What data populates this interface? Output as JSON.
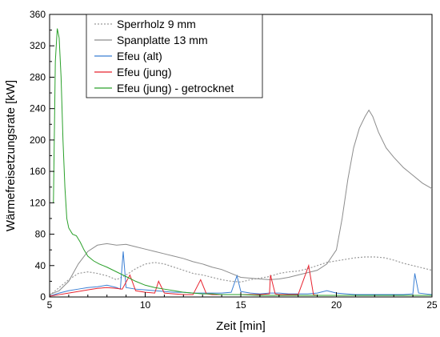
{
  "chart_data": {
    "type": "line",
    "title": "",
    "xlabel": "Zeit [min]",
    "ylabel": "Wärmefreisetzungsrate [kW]",
    "xlim": [
      5,
      25
    ],
    "ylim": [
      0,
      360
    ],
    "xticks": [
      5,
      10,
      15,
      20,
      25
    ],
    "yticks": [
      0,
      40,
      80,
      120,
      160,
      200,
      240,
      280,
      320,
      360
    ],
    "xtick_labels": [
      "5",
      "10",
      "15",
      "20",
      "25"
    ],
    "ytick_labels": [
      "0",
      "40",
      "80",
      "120",
      "160",
      "200",
      "240",
      "280",
      "320",
      "360"
    ],
    "grid": false,
    "legend_position": "top-left",
    "series": [
      {
        "name": "Sperrholz 9 mm",
        "color": "#9a9a9a",
        "style": "dotted",
        "points": [
          [
            5.0,
            2
          ],
          [
            5.5,
            12
          ],
          [
            6.0,
            22
          ],
          [
            6.5,
            30
          ],
          [
            7.0,
            32
          ],
          [
            7.5,
            30
          ],
          [
            8.0,
            27
          ],
          [
            8.5,
            22
          ],
          [
            9.0,
            28
          ],
          [
            9.5,
            36
          ],
          [
            10.0,
            42
          ],
          [
            10.5,
            44
          ],
          [
            11.0,
            42
          ],
          [
            11.5,
            38
          ],
          [
            12.0,
            34
          ],
          [
            12.5,
            30
          ],
          [
            13.0,
            28
          ],
          [
            13.5,
            25
          ],
          [
            14.0,
            22
          ],
          [
            14.5,
            20
          ],
          [
            15.0,
            19
          ],
          [
            15.5,
            22
          ],
          [
            16.0,
            24
          ],
          [
            16.5,
            26
          ],
          [
            17.0,
            30
          ],
          [
            17.5,
            32
          ],
          [
            18.0,
            33
          ],
          [
            18.5,
            36
          ],
          [
            19.0,
            40
          ],
          [
            19.5,
            44
          ],
          [
            20.0,
            46
          ],
          [
            20.5,
            48
          ],
          [
            21.0,
            50
          ],
          [
            21.5,
            51
          ],
          [
            22.0,
            51
          ],
          [
            22.5,
            50
          ],
          [
            23.0,
            47
          ],
          [
            23.5,
            43
          ],
          [
            24.0,
            40
          ],
          [
            24.5,
            37
          ],
          [
            25.0,
            34
          ]
        ]
      },
      {
        "name": "Spanplatte 13 mm",
        "color": "#8c8c8c",
        "style": "solid",
        "points": [
          [
            5.0,
            3
          ],
          [
            5.5,
            8
          ],
          [
            6.0,
            20
          ],
          [
            6.5,
            42
          ],
          [
            7.0,
            58
          ],
          [
            7.5,
            66
          ],
          [
            8.0,
            68
          ],
          [
            8.5,
            66
          ],
          [
            9.0,
            67
          ],
          [
            9.5,
            64
          ],
          [
            10.0,
            61
          ],
          [
            10.5,
            58
          ],
          [
            11.0,
            55
          ],
          [
            11.5,
            52
          ],
          [
            12.0,
            49
          ],
          [
            12.5,
            45
          ],
          [
            13.0,
            42
          ],
          [
            13.5,
            38
          ],
          [
            14.0,
            35
          ],
          [
            14.5,
            30
          ],
          [
            15.0,
            25
          ],
          [
            15.5,
            24
          ],
          [
            16.0,
            23
          ],
          [
            16.5,
            22
          ],
          [
            17.0,
            23
          ],
          [
            17.5,
            25
          ],
          [
            18.0,
            28
          ],
          [
            18.5,
            31
          ],
          [
            19.0,
            34
          ],
          [
            19.5,
            42
          ],
          [
            20.0,
            60
          ],
          [
            20.3,
            100
          ],
          [
            20.6,
            150
          ],
          [
            20.9,
            190
          ],
          [
            21.2,
            215
          ],
          [
            21.5,
            230
          ],
          [
            21.7,
            238
          ],
          [
            21.9,
            230
          ],
          [
            22.2,
            210
          ],
          [
            22.6,
            190
          ],
          [
            23.0,
            178
          ],
          [
            23.5,
            165
          ],
          [
            24.0,
            155
          ],
          [
            24.5,
            145
          ],
          [
            25.0,
            138
          ]
        ]
      },
      {
        "name": "Efeu (alt)",
        "color": "#3b7fd4",
        "style": "solid",
        "points": [
          [
            5.0,
            1
          ],
          [
            5.5,
            5
          ],
          [
            6.0,
            8
          ],
          [
            6.5,
            10
          ],
          [
            7.0,
            12
          ],
          [
            7.5,
            13
          ],
          [
            8.0,
            15
          ],
          [
            8.5,
            12
          ],
          [
            8.7,
            10
          ],
          [
            8.85,
            58
          ],
          [
            9.0,
            12
          ],
          [
            9.5,
            10
          ],
          [
            10.0,
            9
          ],
          [
            10.5,
            8
          ],
          [
            11.0,
            7
          ],
          [
            11.5,
            6
          ],
          [
            12.0,
            6
          ],
          [
            12.5,
            5
          ],
          [
            13.0,
            5
          ],
          [
            13.5,
            5
          ],
          [
            14.0,
            5
          ],
          [
            14.5,
            6
          ],
          [
            14.8,
            27
          ],
          [
            15.0,
            7
          ],
          [
            15.5,
            5
          ],
          [
            16.0,
            4
          ],
          [
            16.5,
            5
          ],
          [
            17.0,
            5
          ],
          [
            17.5,
            4
          ],
          [
            18.0,
            4
          ],
          [
            18.5,
            4
          ],
          [
            19.0,
            5
          ],
          [
            19.5,
            8
          ],
          [
            20.0,
            5
          ],
          [
            20.5,
            4
          ],
          [
            21.0,
            3
          ],
          [
            21.5,
            3
          ],
          [
            22.0,
            3
          ],
          [
            22.5,
            3
          ],
          [
            23.0,
            3
          ],
          [
            23.5,
            3
          ],
          [
            24.0,
            4
          ],
          [
            24.1,
            30
          ],
          [
            24.3,
            5
          ],
          [
            25.0,
            3
          ]
        ]
      },
      {
        "name": "Efeu (jung)",
        "color": "#e8232f",
        "style": "solid",
        "points": [
          [
            5.0,
            1
          ],
          [
            5.5,
            3
          ],
          [
            6.0,
            5
          ],
          [
            6.5,
            7
          ],
          [
            7.0,
            9
          ],
          [
            7.5,
            11
          ],
          [
            8.0,
            12
          ],
          [
            8.5,
            11
          ],
          [
            8.8,
            10
          ],
          [
            9.2,
            28
          ],
          [
            9.5,
            8
          ],
          [
            10.0,
            6
          ],
          [
            10.5,
            5
          ],
          [
            10.7,
            20
          ],
          [
            11.0,
            5
          ],
          [
            11.5,
            4
          ],
          [
            12.0,
            3
          ],
          [
            12.5,
            3
          ],
          [
            12.9,
            22
          ],
          [
            13.2,
            4
          ],
          [
            13.5,
            3
          ],
          [
            14.0,
            3
          ],
          [
            14.5,
            3
          ],
          [
            15.0,
            3
          ],
          [
            15.5,
            3
          ],
          [
            16.0,
            3
          ],
          [
            16.5,
            4
          ],
          [
            16.55,
            28
          ],
          [
            16.8,
            4
          ],
          [
            17.0,
            3
          ],
          [
            17.5,
            3
          ],
          [
            18.0,
            3
          ],
          [
            18.55,
            40
          ],
          [
            18.8,
            3
          ],
          [
            19.0,
            2
          ],
          [
            20.0,
            2
          ],
          [
            21.0,
            2
          ],
          [
            22.0,
            2
          ],
          [
            23.0,
            2
          ],
          [
            24.0,
            2
          ],
          [
            25.0,
            2
          ]
        ]
      },
      {
        "name": "Efeu (jung) - getrocknet",
        "color": "#2aa02a",
        "style": "solid",
        "points": [
          [
            5.2,
            120
          ],
          [
            5.3,
            300
          ],
          [
            5.4,
            342
          ],
          [
            5.5,
            330
          ],
          [
            5.6,
            280
          ],
          [
            5.7,
            200
          ],
          [
            5.8,
            140
          ],
          [
            5.9,
            100
          ],
          [
            6.0,
            88
          ],
          [
            6.2,
            80
          ],
          [
            6.4,
            78
          ],
          [
            6.6,
            70
          ],
          [
            6.8,
            60
          ],
          [
            7.0,
            52
          ],
          [
            7.3,
            46
          ],
          [
            7.6,
            42
          ],
          [
            8.0,
            38
          ],
          [
            8.5,
            32
          ],
          [
            9.0,
            26
          ],
          [
            9.5,
            20
          ],
          [
            10.0,
            15
          ],
          [
            10.5,
            12
          ],
          [
            11.0,
            10
          ],
          [
            11.5,
            8
          ],
          [
            12.0,
            6
          ],
          [
            12.5,
            5
          ],
          [
            13.0,
            4
          ],
          [
            13.5,
            4
          ],
          [
            14.0,
            3
          ],
          [
            14.5,
            3
          ],
          [
            15.0,
            3
          ],
          [
            16.0,
            2
          ],
          [
            17.0,
            2
          ],
          [
            18.0,
            2
          ],
          [
            19.0,
            2
          ],
          [
            20.0,
            2
          ],
          [
            21.0,
            2
          ],
          [
            22.0,
            2
          ],
          [
            23.0,
            2
          ],
          [
            24.0,
            2
          ],
          [
            25.0,
            2
          ]
        ]
      }
    ]
  }
}
